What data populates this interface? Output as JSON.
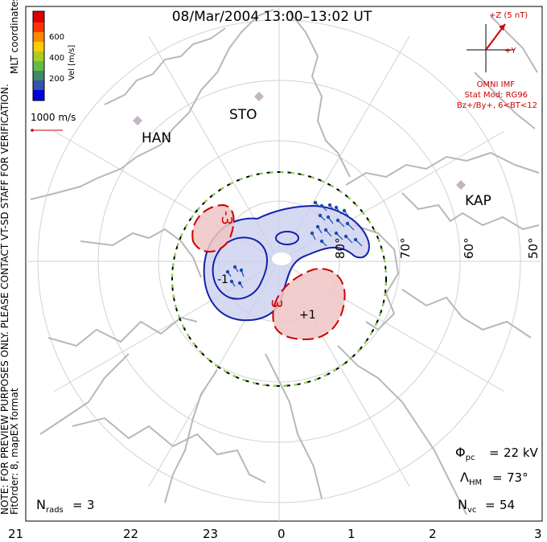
{
  "title": "08/Mar/2004 13:00–13:02 UT",
  "side_note": "NOTE: FOR PREVIEW PURPOSES ONLY. PLEASE CONTACT VT-SD STAFF FOR VERIFICATION.",
  "fit_order": "FitOrder: 8, mapEX format",
  "mlt_label": "MLT coordinates",
  "colorbar": {
    "label": "Vel [m/s]",
    "ticks": [
      "600",
      "400",
      "200"
    ],
    "colors": [
      "#0000dd",
      "#3355aa",
      "#3c8a6a",
      "#66bb44",
      "#aacc22",
      "#ffcc00",
      "#ff8800",
      "#ff3300",
      "#dd0000"
    ]
  },
  "scale_vector": "1000 m/s",
  "stations": [
    "STO",
    "HAN",
    "KAP"
  ],
  "latitude_labels": [
    "80°",
    "70°",
    "60°",
    "50°"
  ],
  "mlt_ticks": [
    "21",
    "22",
    "23",
    "0",
    "1",
    "2",
    "3"
  ],
  "imf": {
    "z_label": "+Z (5 nT)",
    "y_label": "+Y",
    "source": "OMNI IMF",
    "model": "Stat Mod: RG96",
    "bins": "Bz+/By+, 6<BT<12"
  },
  "contour_labels": [
    "-1",
    "+1",
    "3",
    "-3"
  ],
  "stats": {
    "phi_pc": "22 kV",
    "lambda_hm": "73°",
    "n_vc": "54",
    "n_rads": "3"
  }
}
